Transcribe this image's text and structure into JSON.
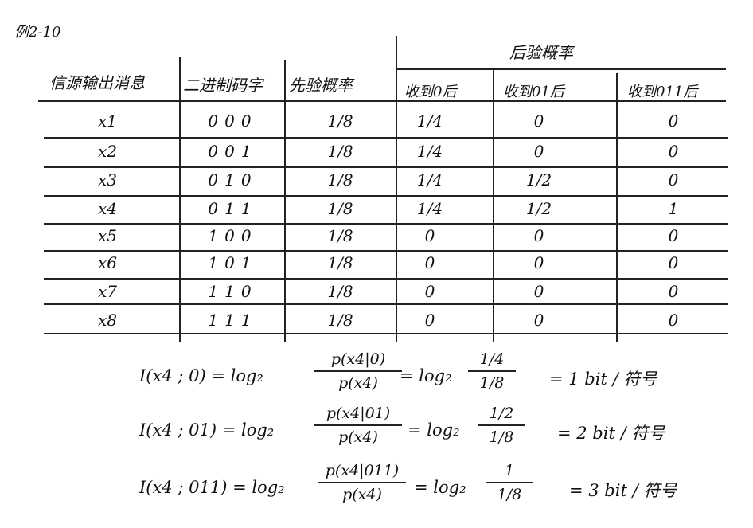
{
  "label": "例2-10",
  "headers": {
    "source": "信源输出消息",
    "code": "二进制码字",
    "prior": "先验概率",
    "posterior": "后验概率",
    "after0": "收到0后",
    "after01": "收到01后",
    "after011": "收到011后"
  },
  "rows": [
    {
      "x": "x1",
      "code": "000",
      "prior": "1/8",
      "p0": "1/4",
      "p01": "0",
      "p011": "0"
    },
    {
      "x": "x2",
      "code": "001",
      "prior": "1/8",
      "p0": "1/4",
      "p01": "0",
      "p011": "0"
    },
    {
      "x": "x3",
      "code": "010",
      "prior": "1/8",
      "p0": "1/4",
      "p01": "1/2",
      "p011": "0"
    },
    {
      "x": "x4",
      "code": "011",
      "prior": "1/8",
      "p0": "1/4",
      "p01": "1/2",
      "p011": "1"
    },
    {
      "x": "x5",
      "code": "100",
      "prior": "1/8",
      "p0": "0",
      "p01": "0",
      "p011": "0"
    },
    {
      "x": "x6",
      "code": "101",
      "prior": "1/8",
      "p0": "0",
      "p01": "0",
      "p011": "0"
    },
    {
      "x": "x7",
      "code": "110",
      "prior": "1/8",
      "p0": "0",
      "p01": "0",
      "p011": "0"
    },
    {
      "x": "x8",
      "code": "111",
      "prior": "1/8",
      "p0": "0",
      "p01": "0",
      "p011": "0"
    }
  ],
  "formulas": [
    {
      "lhs": "I(x4 ; 0) = log₂",
      "num": "p(x4|0)",
      "den": "p(x4)",
      "mid": "= log₂",
      "num2": "1/4",
      "den2": "1/8",
      "rhs": "= 1  bit / 符号"
    },
    {
      "lhs": "I(x4 ; 01) = log₂",
      "num": "p(x4|01)",
      "den": "p(x4)",
      "mid": "= log₂",
      "num2": "1/2",
      "den2": "1/8",
      "rhs": "= 2 bit / 符号"
    },
    {
      "lhs": "I(x4 ; 011) = log₂",
      "num": "p(x4|011)",
      "den": "p(x4)",
      "mid": "= log₂",
      "num2": "1",
      "den2": "1/8",
      "rhs": "= 3 bit / 符号"
    }
  ]
}
